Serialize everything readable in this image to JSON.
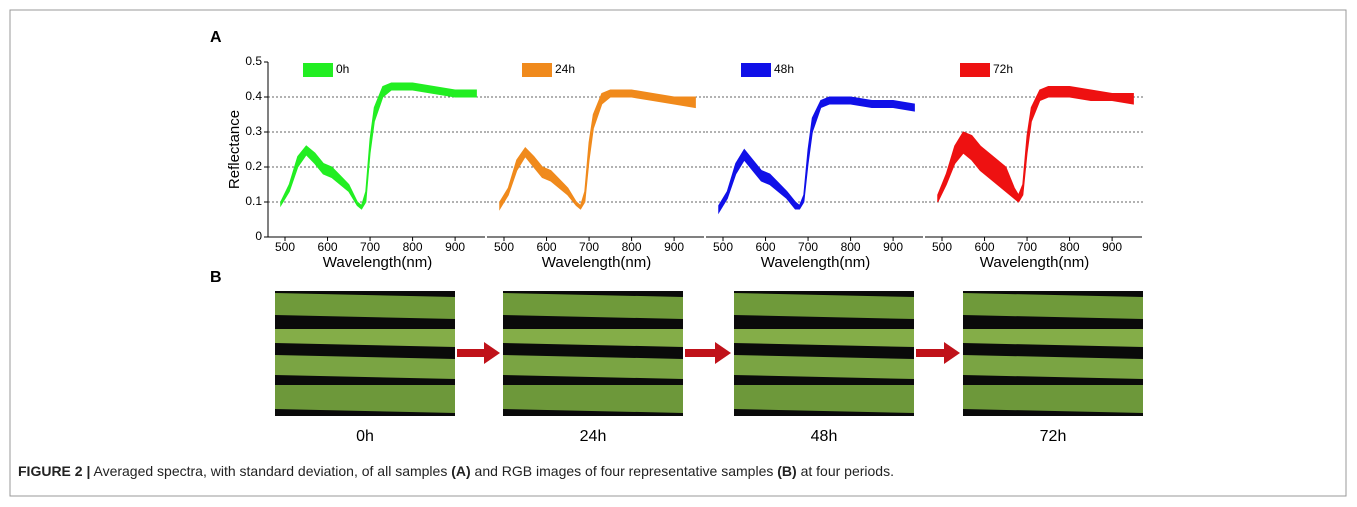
{
  "panel_a_label": "A",
  "panel_b_label": "B",
  "chart_data": [
    {
      "type": "band",
      "xlabel": "Wavelength(nm)",
      "ylabel": "Reflectance",
      "x": [
        490,
        510,
        530,
        550,
        570,
        590,
        610,
        630,
        650,
        670,
        680,
        690,
        700,
        710,
        730,
        750,
        800,
        850,
        900,
        950
      ],
      "xlim": [
        460,
        975
      ],
      "xticks": [
        500,
        600,
        700,
        800,
        900
      ],
      "ylim": [
        0,
        0.5
      ],
      "yticks": [
        0.0,
        0.1,
        0.2,
        0.3,
        0.4,
        0.5
      ],
      "grid": true,
      "series": [
        {
          "name": "0h",
          "color": "#22ee22",
          "lower": [
            0.09,
            0.13,
            0.2,
            0.235,
            0.21,
            0.18,
            0.17,
            0.15,
            0.13,
            0.09,
            0.08,
            0.1,
            0.24,
            0.33,
            0.4,
            0.42,
            0.42,
            0.41,
            0.4,
            0.4
          ],
          "upper": [
            0.1,
            0.15,
            0.23,
            0.26,
            0.24,
            0.21,
            0.2,
            0.175,
            0.15,
            0.1,
            0.09,
            0.13,
            0.28,
            0.37,
            0.43,
            0.44,
            0.44,
            0.43,
            0.42,
            0.42
          ]
        }
      ]
    },
    {
      "type": "band",
      "xlabel": "Wavelength(nm)",
      "x": [
        490,
        510,
        530,
        550,
        570,
        590,
        610,
        630,
        650,
        670,
        680,
        690,
        700,
        710,
        730,
        750,
        800,
        850,
        900,
        950
      ],
      "xlim": [
        460,
        975
      ],
      "xticks": [
        500,
        600,
        700,
        800,
        900
      ],
      "ylim": [
        0,
        0.5
      ],
      "yticks": [
        0.1,
        0.2,
        0.3,
        0.4
      ],
      "grid": true,
      "series": [
        {
          "name": "24h",
          "color": "#f08a1c",
          "lower": [
            0.08,
            0.12,
            0.19,
            0.23,
            0.2,
            0.17,
            0.16,
            0.14,
            0.12,
            0.09,
            0.08,
            0.1,
            0.22,
            0.31,
            0.38,
            0.4,
            0.4,
            0.39,
            0.38,
            0.37
          ],
          "upper": [
            0.1,
            0.14,
            0.22,
            0.255,
            0.23,
            0.2,
            0.19,
            0.165,
            0.14,
            0.1,
            0.09,
            0.13,
            0.27,
            0.35,
            0.41,
            0.42,
            0.42,
            0.41,
            0.4,
            0.4
          ]
        }
      ]
    },
    {
      "type": "band",
      "xlabel": "Wavelength(nm)",
      "x": [
        490,
        510,
        530,
        550,
        570,
        590,
        610,
        630,
        650,
        670,
        680,
        690,
        700,
        710,
        730,
        750,
        800,
        850,
        900,
        950
      ],
      "xlim": [
        460,
        975
      ],
      "xticks": [
        500,
        600,
        700,
        800,
        900
      ],
      "ylim": [
        0,
        0.5
      ],
      "yticks": [
        0.1,
        0.2,
        0.3,
        0.4
      ],
      "grid": true,
      "series": [
        {
          "name": "48h",
          "color": "#1010e8",
          "lower": [
            0.07,
            0.11,
            0.18,
            0.22,
            0.19,
            0.16,
            0.15,
            0.13,
            0.11,
            0.08,
            0.08,
            0.1,
            0.21,
            0.3,
            0.37,
            0.38,
            0.38,
            0.37,
            0.37,
            0.36
          ],
          "upper": [
            0.09,
            0.13,
            0.21,
            0.25,
            0.22,
            0.19,
            0.18,
            0.155,
            0.13,
            0.1,
            0.09,
            0.12,
            0.25,
            0.34,
            0.39,
            0.4,
            0.4,
            0.39,
            0.39,
            0.38
          ]
        }
      ]
    },
    {
      "type": "band",
      "xlabel": "Wavelength(nm)",
      "x": [
        490,
        510,
        530,
        550,
        570,
        590,
        610,
        630,
        650,
        670,
        680,
        690,
        700,
        710,
        730,
        750,
        800,
        850,
        900,
        950
      ],
      "xlim": [
        460,
        975
      ],
      "xticks": [
        500,
        600,
        700,
        800,
        900
      ],
      "ylim": [
        0,
        0.5
      ],
      "yticks": [
        0.1,
        0.2,
        0.3,
        0.4
      ],
      "grid": true,
      "series": [
        {
          "name": "72h",
          "color": "#ee1111",
          "lower": [
            0.1,
            0.15,
            0.21,
            0.24,
            0.22,
            0.19,
            0.17,
            0.15,
            0.13,
            0.11,
            0.1,
            0.12,
            0.24,
            0.33,
            0.39,
            0.4,
            0.4,
            0.39,
            0.39,
            0.38
          ],
          "upper": [
            0.12,
            0.18,
            0.26,
            0.3,
            0.29,
            0.26,
            0.24,
            0.22,
            0.2,
            0.14,
            0.12,
            0.15,
            0.29,
            0.37,
            0.42,
            0.43,
            0.43,
            0.42,
            0.41,
            0.41
          ]
        }
      ]
    }
  ],
  "images": [
    "0h",
    "24h",
    "48h",
    "72h"
  ],
  "caption": {
    "label": "FIGURE 2 |",
    "parts": [
      " Averaged spectra, with standard deviation, of all samples ",
      "(A)",
      " and RGB images of four representative samples ",
      "(B)",
      " at four periods."
    ]
  }
}
